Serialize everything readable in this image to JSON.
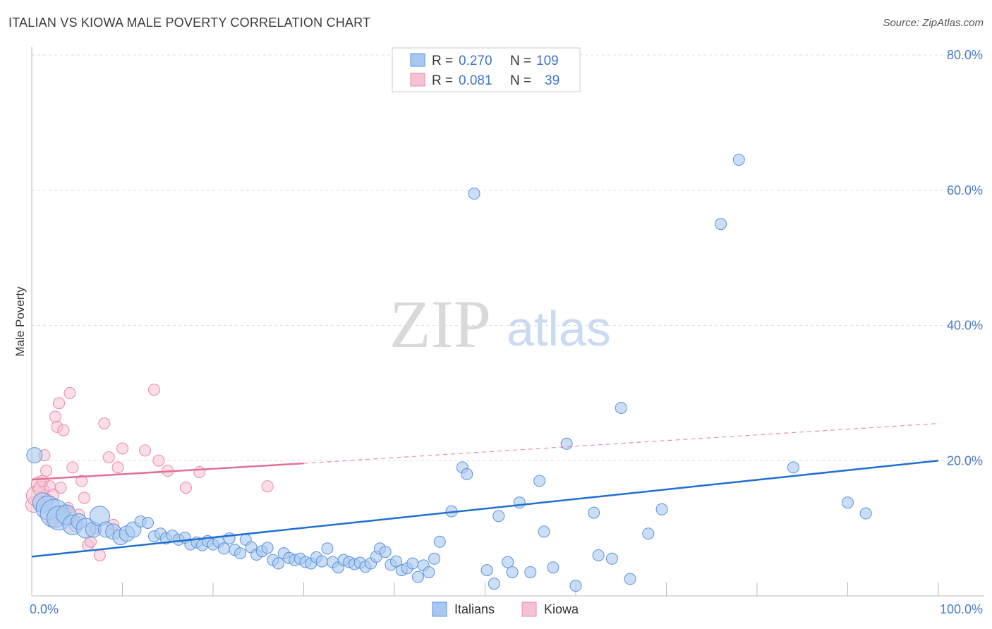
{
  "header": {
    "title": "ITALIAN VS KIOWA MALE POVERTY CORRELATION CHART",
    "source": "Source: ZipAtlas.com"
  },
  "watermark": {
    "zip": "ZIP",
    "atlas": "atlas"
  },
  "colors": {
    "italians_fill": "#a9c8f0",
    "italians_stroke": "#5b93dc",
    "italians_line": "#1f6fd0",
    "kiowa_fill": "#f6c2d3",
    "kiowa_stroke": "#e889a8",
    "kiowa_line": "#e0709a",
    "grid": "#dddddd",
    "tick_label": "#4a7cc9"
  },
  "legend": {
    "rows": [
      {
        "r_label": "R =",
        "r_value": "0.270",
        "n_label": "N =",
        "n_value": "109"
      },
      {
        "r_label": "R =",
        "r_value": "0.081",
        "n_label": "N =",
        "n_value": "39"
      }
    ]
  },
  "chart_data": {
    "type": "scatter",
    "title": "ITALIAN VS KIOWA MALE POVERTY CORRELATION CHART",
    "xlabel": "",
    "ylabel": "Male Poverty",
    "xlim": [
      0,
      100
    ],
    "ylim": [
      0,
      80
    ],
    "x_tick_labels": [
      "0.0%",
      "100.0%"
    ],
    "y_ticks": [
      20,
      40,
      60,
      80
    ],
    "y_tick_labels": [
      "20.0%",
      "40.0%",
      "60.0%",
      "80.0%"
    ],
    "grid": true,
    "legend_position": "top-center",
    "series": [
      {
        "name": "Italians",
        "r": 0.27,
        "n": 109,
        "trend": {
          "x": [
            0,
            100
          ],
          "y": [
            5.8,
            20.0
          ],
          "dashed_extension": false
        },
        "points": [
          [
            0.3,
            20.8,
            2
          ],
          [
            1.2,
            13.8,
            3
          ],
          [
            1.8,
            13.0,
            4
          ],
          [
            2.5,
            12.2,
            5
          ],
          [
            3.0,
            11.5,
            4
          ],
          [
            3.8,
            12.0,
            3
          ],
          [
            4.5,
            10.5,
            3
          ],
          [
            5.2,
            11.0,
            2
          ],
          [
            6.0,
            10.0,
            3
          ],
          [
            6.8,
            9.8,
            2
          ],
          [
            7.5,
            11.8,
            3
          ],
          [
            8.2,
            9.8,
            2
          ],
          [
            9.0,
            9.5,
            2
          ],
          [
            9.8,
            8.7,
            2
          ],
          [
            10.5,
            9.2,
            2
          ],
          [
            11.2,
            9.8,
            2
          ],
          [
            12.0,
            11.0,
            1
          ],
          [
            12.8,
            10.8,
            1
          ],
          [
            13.5,
            8.8,
            1
          ],
          [
            14.2,
            9.2,
            1
          ],
          [
            14.8,
            8.5,
            1
          ],
          [
            15.5,
            8.9,
            1
          ],
          [
            16.2,
            8.3,
            1
          ],
          [
            16.9,
            8.6,
            1
          ],
          [
            17.5,
            7.6,
            1
          ],
          [
            18.2,
            7.9,
            1
          ],
          [
            18.8,
            7.5,
            1
          ],
          [
            19.4,
            8.1,
            1
          ],
          [
            20.0,
            7.6,
            1
          ],
          [
            20.6,
            8.0,
            1
          ],
          [
            21.2,
            7.0,
            1
          ],
          [
            21.8,
            8.5,
            1
          ],
          [
            22.4,
            6.8,
            1
          ],
          [
            23.0,
            6.3,
            1
          ],
          [
            23.6,
            8.3,
            1
          ],
          [
            24.2,
            7.2,
            1
          ],
          [
            24.8,
            6.1,
            1
          ],
          [
            25.4,
            6.6,
            1
          ],
          [
            26.0,
            7.1,
            1
          ],
          [
            26.6,
            5.3,
            1
          ],
          [
            27.2,
            4.8,
            1
          ],
          [
            27.8,
            6.3,
            1
          ],
          [
            28.4,
            5.6,
            1
          ],
          [
            29.0,
            5.3,
            1
          ],
          [
            29.6,
            5.5,
            1
          ],
          [
            30.2,
            5.0,
            1
          ],
          [
            30.8,
            4.8,
            1
          ],
          [
            31.4,
            5.7,
            1
          ],
          [
            32.0,
            5.1,
            1
          ],
          [
            32.6,
            7.0,
            1
          ],
          [
            33.2,
            5.0,
            1
          ],
          [
            33.8,
            4.2,
            1
          ],
          [
            34.4,
            5.3,
            1
          ],
          [
            35.0,
            5.0,
            1
          ],
          [
            35.6,
            4.7,
            1
          ],
          [
            36.2,
            4.9,
            1
          ],
          [
            36.8,
            4.3,
            1
          ],
          [
            37.4,
            4.8,
            1
          ],
          [
            38.0,
            5.8,
            1
          ],
          [
            38.4,
            7.0,
            1
          ],
          [
            39.0,
            6.5,
            1
          ],
          [
            39.6,
            4.6,
            1
          ],
          [
            40.2,
            5.1,
            1
          ],
          [
            40.8,
            3.8,
            1
          ],
          [
            41.4,
            4.1,
            1
          ],
          [
            42.0,
            4.8,
            1
          ],
          [
            42.6,
            2.8,
            1
          ],
          [
            43.2,
            4.5,
            1
          ],
          [
            43.8,
            3.5,
            1
          ],
          [
            44.4,
            5.5,
            1
          ],
          [
            45.0,
            8.0,
            1
          ],
          [
            46.3,
            12.5,
            1
          ],
          [
            47.5,
            19.0,
            1
          ],
          [
            48.0,
            18.0,
            1
          ],
          [
            50.2,
            3.8,
            1
          ],
          [
            51.0,
            1.8,
            1
          ],
          [
            51.5,
            11.8,
            1
          ],
          [
            52.5,
            5.0,
            1
          ],
          [
            53.0,
            3.5,
            1
          ],
          [
            53.8,
            13.8,
            1
          ],
          [
            55.0,
            3.5,
            1
          ],
          [
            56.0,
            17.0,
            1
          ],
          [
            56.5,
            9.5,
            1
          ],
          [
            57.5,
            4.2,
            1
          ],
          [
            59.0,
            22.5,
            1
          ],
          [
            60.0,
            1.5,
            1
          ],
          [
            62.0,
            12.3,
            1
          ],
          [
            62.5,
            6.0,
            1
          ],
          [
            64.0,
            5.5,
            1
          ],
          [
            65.0,
            27.8,
            1
          ],
          [
            66.0,
            2.5,
            1
          ],
          [
            68.0,
            9.2,
            1
          ],
          [
            69.5,
            12.8,
            1
          ],
          [
            76.0,
            55.0,
            1
          ],
          [
            78.0,
            64.5,
            1
          ],
          [
            48.8,
            59.5,
            1
          ],
          [
            84.0,
            19.0,
            1
          ],
          [
            90.0,
            13.8,
            1
          ],
          [
            92.0,
            12.2,
            1
          ]
        ]
      },
      {
        "name": "Kiowa",
        "r": 0.081,
        "n": 39,
        "trend": {
          "x": [
            0,
            30
          ],
          "y": [
            17.2,
            19.6
          ],
          "dashed_extension_to": [
            100,
            25.5
          ]
        },
        "points": [
          [
            0.2,
            13.5,
            2
          ],
          [
            0.5,
            14.8,
            3
          ],
          [
            0.8,
            16.5,
            2
          ],
          [
            1.0,
            15.8,
            2
          ],
          [
            1.2,
            17.0,
            1
          ],
          [
            1.4,
            20.8,
            1
          ],
          [
            1.6,
            18.5,
            1
          ],
          [
            1.8,
            14.2,
            1
          ],
          [
            2.0,
            16.2,
            1
          ],
          [
            2.2,
            11.0,
            1
          ],
          [
            2.4,
            15.0,
            1
          ],
          [
            2.6,
            26.5,
            1
          ],
          [
            2.8,
            25.0,
            1
          ],
          [
            3.0,
            28.5,
            1
          ],
          [
            3.2,
            16.0,
            1
          ],
          [
            3.5,
            24.5,
            1
          ],
          [
            3.8,
            12.5,
            1
          ],
          [
            4.0,
            13.0,
            1
          ],
          [
            4.2,
            30.0,
            1
          ],
          [
            4.5,
            19.0,
            1
          ],
          [
            4.8,
            10.3,
            1
          ],
          [
            5.2,
            12.0,
            1
          ],
          [
            5.5,
            17.0,
            1
          ],
          [
            5.8,
            14.5,
            1
          ],
          [
            6.2,
            7.5,
            1
          ],
          [
            6.5,
            8.0,
            1
          ],
          [
            7.0,
            10.0,
            1
          ],
          [
            7.5,
            6.0,
            1
          ],
          [
            8.0,
            25.5,
            1
          ],
          [
            8.5,
            20.5,
            1
          ],
          [
            9.0,
            10.5,
            1
          ],
          [
            9.5,
            19.0,
            1
          ],
          [
            10.0,
            21.8,
            1
          ],
          [
            12.5,
            21.5,
            1
          ],
          [
            13.5,
            30.5,
            1
          ],
          [
            14.0,
            20.0,
            1
          ],
          [
            15.0,
            18.5,
            1
          ],
          [
            17.0,
            16.0,
            1
          ],
          [
            18.5,
            18.3,
            1
          ],
          [
            26.0,
            16.2,
            1
          ]
        ]
      }
    ]
  },
  "bottom_legend": {
    "items": [
      "Italians",
      "Kiowa"
    ]
  }
}
